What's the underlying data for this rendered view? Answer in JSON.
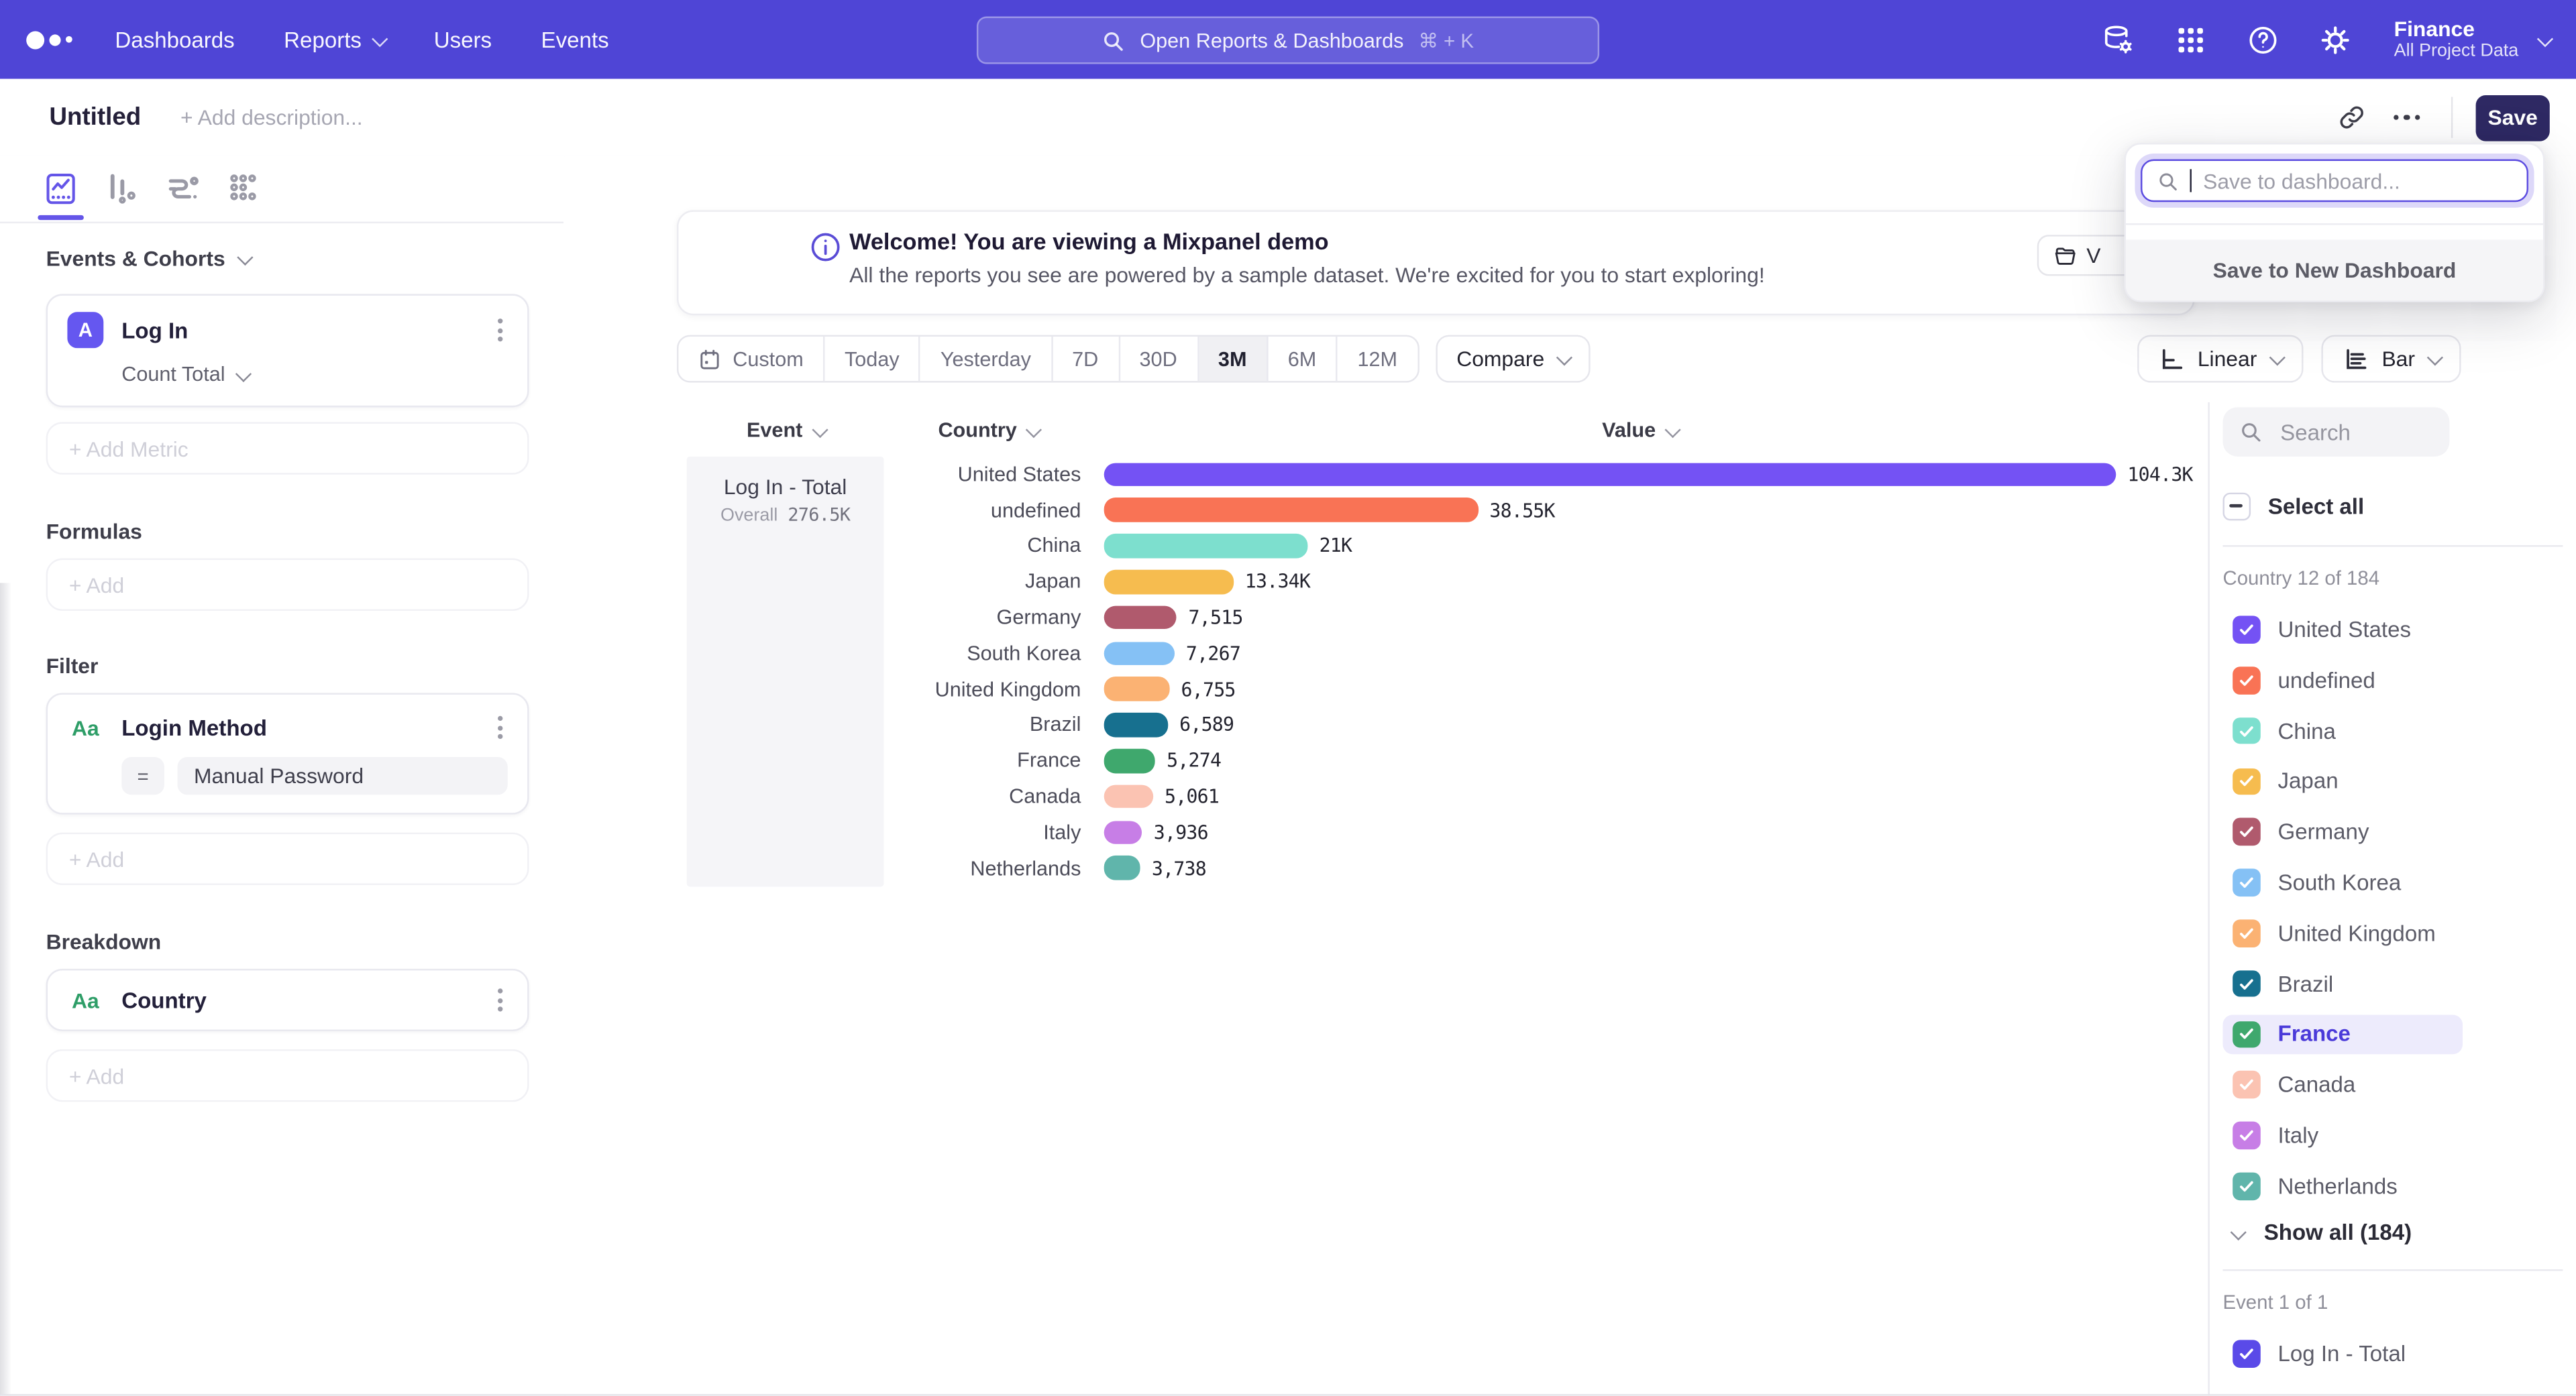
{
  "topnav": {
    "links": [
      "Dashboards",
      "Reports",
      "Users",
      "Events"
    ],
    "search": {
      "placeholder": "Open Reports & Dashboards",
      "shortcut": "⌘ + K"
    },
    "project": {
      "name": "Finance",
      "scope": "All Project Data"
    }
  },
  "header": {
    "title": "Untitled",
    "description_placeholder": "+ Add description...",
    "save": "Save"
  },
  "save_popup": {
    "search_placeholder": "Save to dashboard...",
    "new_dashboard": "Save to New Dashboard"
  },
  "sidebar": {
    "events_section": "Events & Cohorts",
    "metric": {
      "badge": "A",
      "name": "Log In",
      "aggregation": "Count Total"
    },
    "add_metric": "+ Add Metric",
    "formulas_label": "Formulas",
    "add": "+ Add",
    "filter_label": "Filter",
    "filter": {
      "badge": "Aa",
      "name": "Login Method",
      "operator": "=",
      "value": "Manual Password"
    },
    "breakdown_label": "Breakdown",
    "breakdown": {
      "badge": "Aa",
      "name": "Country"
    }
  },
  "banner": {
    "title": "Welcome! You are viewing a Mixpanel demo",
    "subtitle": "All the reports you see are powered by a sample dataset. We're excited for you to start exploring!",
    "button_visible_text": "V"
  },
  "controls": {
    "ranges": [
      "Custom",
      "Today",
      "Yesterday",
      "7D",
      "30D",
      "3M",
      "6M",
      "12M"
    ],
    "selected_range": "3M",
    "compare": "Compare",
    "scale": "Linear",
    "chart_type": "Bar"
  },
  "table": {
    "col_event": "Event",
    "col_country": "Country",
    "col_value": "Value",
    "event_name": "Log In - Total",
    "overall_label": "Overall",
    "overall_value": "276.5K"
  },
  "chart_data": {
    "type": "bar",
    "orientation": "horizontal",
    "title": "Log In - Total by Country (3M)",
    "categories": [
      "United States",
      "undefined",
      "China",
      "Japan",
      "Germany",
      "South Korea",
      "United Kingdom",
      "Brazil",
      "France",
      "Canada",
      "Italy",
      "Netherlands"
    ],
    "values": [
      104300,
      38550,
      21000,
      13340,
      7515,
      7267,
      6755,
      6589,
      5274,
      5061,
      3936,
      3738
    ],
    "value_labels": [
      "104.3K",
      "38.55K",
      "21K",
      "13.34K",
      "7,515",
      "7,267",
      "6,755",
      "6,589",
      "5,274",
      "5,061",
      "3,936",
      "3,738"
    ],
    "colors": [
      "#7452F4",
      "#F97355",
      "#7DDFCE",
      "#F6BC4F",
      "#B05A6D",
      "#85C1F5",
      "#FBB273",
      "#17708F",
      "#3FA86D",
      "#FBC3B2",
      "#C77EE6",
      "#60B5AB"
    ],
    "overall": "276.5K",
    "xlim": [
      0,
      110000
    ],
    "grid": false,
    "legend_position": "right"
  },
  "legend": {
    "search_placeholder": "Search",
    "select_all": "Select all",
    "country_group": "Country 12 of 184",
    "countries": [
      {
        "label": "United States",
        "color": "#7452F4",
        "checked": true,
        "highlighted": false
      },
      {
        "label": "undefined",
        "color": "#F97355",
        "checked": true,
        "highlighted": false
      },
      {
        "label": "China",
        "color": "#7DDFCE",
        "checked": true,
        "highlighted": false
      },
      {
        "label": "Japan",
        "color": "#F6BC4F",
        "checked": true,
        "highlighted": false
      },
      {
        "label": "Germany",
        "color": "#B05A6D",
        "checked": true,
        "highlighted": false
      },
      {
        "label": "South Korea",
        "color": "#85C1F5",
        "checked": true,
        "highlighted": false
      },
      {
        "label": "United Kingdom",
        "color": "#FBB273",
        "checked": true,
        "highlighted": false
      },
      {
        "label": "Brazil",
        "color": "#17708F",
        "checked": true,
        "highlighted": false
      },
      {
        "label": "France",
        "color": "#3FA86D",
        "checked": true,
        "highlighted": true
      },
      {
        "label": "Canada",
        "color": "#FBC3B2",
        "checked": true,
        "highlighted": false
      },
      {
        "label": "Italy",
        "color": "#C77EE6",
        "checked": true,
        "highlighted": false
      },
      {
        "label": "Netherlands",
        "color": "#60B5AB",
        "checked": true,
        "highlighted": false
      }
    ],
    "show_all": "Show all (184)",
    "event_group": "Event 1 of 1",
    "event_item": {
      "label": "Log In - Total",
      "color": "#5A4AE8",
      "checked": true
    }
  },
  "colors": {
    "nav_background": "#4F45D6",
    "accent": "#6455E8",
    "save_button": "#2E2963",
    "highlight_row": "#EDEBFC"
  }
}
